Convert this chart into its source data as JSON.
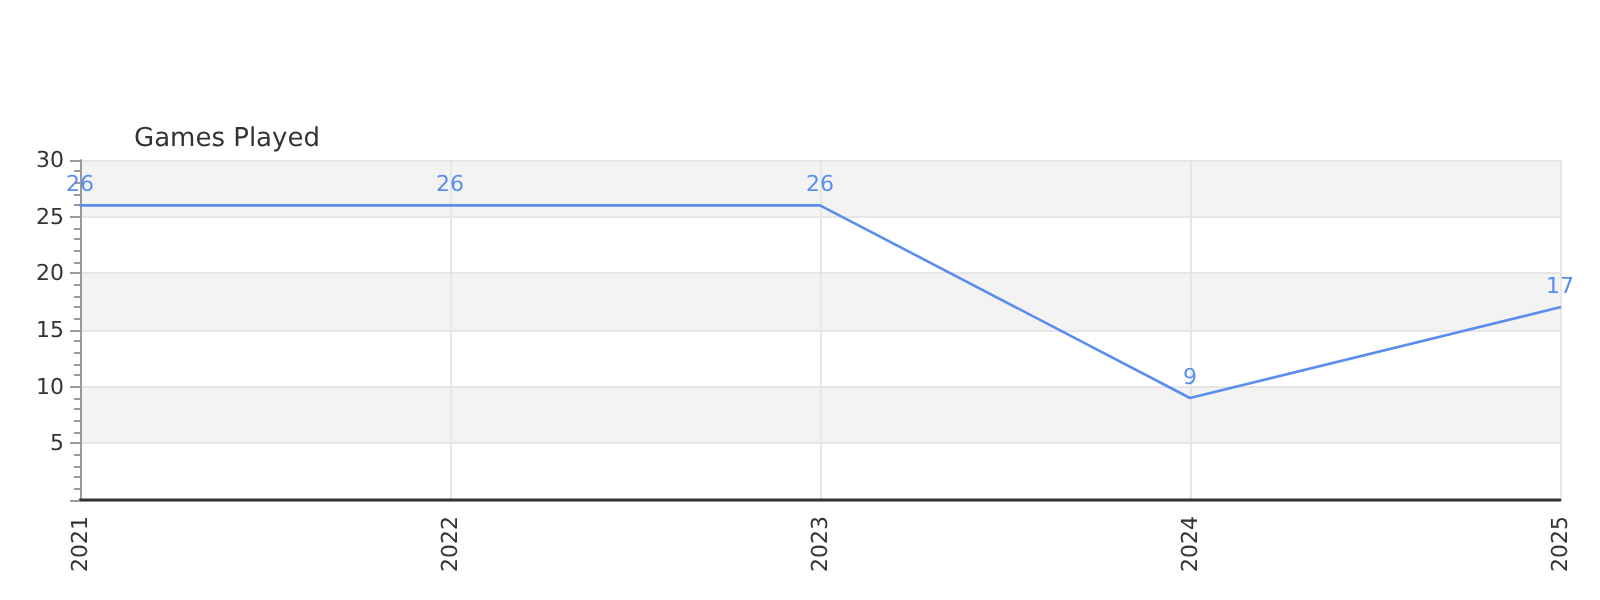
{
  "chart_data": {
    "type": "line",
    "title": "Games Played",
    "categories": [
      "2021",
      "2022",
      "2023",
      "2024",
      "2025"
    ],
    "series": [
      {
        "color": "#5b8def",
        "values": [
          26,
          26,
          26,
          9,
          17
        ]
      }
    ],
    "ylim": [
      0,
      30
    ],
    "yticks": [
      {
        "value": 0,
        "label": null
      },
      5,
      10,
      15,
      20,
      25,
      30
    ],
    "grid": true,
    "data_labels": true,
    "marker": "none",
    "line_style": "solid"
  }
}
